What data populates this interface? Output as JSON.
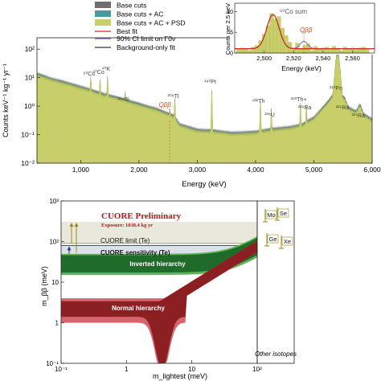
{
  "chart_data": [
    {
      "type": "area",
      "ylabel": "Counts keV⁻¹ kg⁻¹ yr⁻¹",
      "xlabel": "Energy (keV)",
      "xlim": [
        250,
        6000
      ],
      "ylim_log": [
        -2,
        2.4
      ],
      "x_ticks": [
        "1,000",
        "2,000",
        "3,000",
        "4,000",
        "5,000",
        "6,000"
      ],
      "x_tick_values": [
        1000,
        2000,
        3000,
        4000,
        5000,
        6000
      ],
      "y_ticks": [
        "10⁻²",
        "10⁻¹",
        "10⁰",
        "10¹",
        "10²"
      ],
      "y_tick_exps": [
        -2,
        -1,
        0,
        1,
        2
      ],
      "legend": [
        "Base cuts",
        "Base cuts + AC",
        "Base cuts + AC + PSD",
        "Best fit",
        "90% CI limit on Γ0ν",
        "Background-only fit"
      ],
      "colors": {
        "base": "#6e6e6e",
        "ac": "#4a9aa0",
        "psd": "#c8cf6a",
        "psd_line": "#b9c04e",
        "best_fit": "#cc2a1a",
        "ci": "#5a5acc",
        "bkg": "#333333"
      },
      "continuum": [
        [
          250,
          12
        ],
        [
          500,
          8
        ],
        [
          800,
          5.5
        ],
        [
          1100,
          3.6
        ],
        [
          1400,
          2.3
        ],
        [
          1700,
          1.6
        ],
        [
          2000,
          1.05
        ],
        [
          2300,
          0.7
        ],
        [
          2600,
          0.4
        ],
        [
          2700,
          0.2
        ],
        [
          3000,
          0.13
        ],
        [
          3300,
          0.12
        ],
        [
          3600,
          0.1
        ],
        [
          4000,
          0.11
        ],
        [
          4300,
          0.14
        ],
        [
          4600,
          0.16
        ],
        [
          4800,
          0.2
        ],
        [
          5000,
          0.35
        ],
        [
          5200,
          1.0
        ],
        [
          5300,
          1.8
        ],
        [
          5400,
          1.5
        ],
        [
          5500,
          1.0
        ],
        [
          5700,
          0.6
        ],
        [
          5900,
          0.4
        ],
        [
          6000,
          0.3
        ]
      ],
      "peaks": [
        {
          "label": "⁶⁰Co",
          "x": 1173,
          "y": 6
        },
        {
          "label": "⁶⁰Co",
          "x": 1332,
          "y": 5
        },
        {
          "label": "⁴⁰K",
          "x": 1461,
          "y": 8
        },
        {
          "label": "²¹⁴Bi",
          "x": 1764,
          "y": 1.2
        },
        {
          "label": "Qββ",
          "x": 2527,
          "y": 0.25
        },
        {
          "label": "²⁰⁸Tl",
          "x": 2615,
          "y": 1.3
        },
        {
          "label": "¹⁹⁰Pt",
          "x": 3249,
          "y": 3
        },
        {
          "label": "²³²Th",
          "x": 4083,
          "y": 1.2
        },
        {
          "label": "²³⁸U",
          "x": 4270,
          "y": 0.6
        },
        {
          "label": "²³⁰Th+",
          "x": 4770,
          "y": 1.0
        },
        {
          "label": "²²⁶Ra",
          "x": 4871,
          "y": 0.8
        },
        {
          "label": "²¹⁰Po",
          "x": 5407,
          "y": 60
        },
        {
          "label": "²²⁶Ra",
          "x": 5520,
          "y": 0.8
        },
        {
          "label": "²²⁴Ra",
          "x": 5790,
          "y": 0.45
        }
      ],
      "inset": {
        "title": "⁶⁰Co sum",
        "ylabel": "Counts per 2.5 keV",
        "xlabel": "Energy (keV)",
        "xlim": [
          2480,
          2575
        ],
        "ylim": [
          0,
          12
        ],
        "x_ticks": [
          "2,500",
          "2,520",
          "2,540",
          "2,560"
        ],
        "x_tick_values": [
          2500,
          2520,
          2540,
          2560
        ],
        "y_ticks": [
          "0",
          "5",
          "10"
        ],
        "y_tick_values": [
          0,
          5,
          10
        ],
        "q_label": "Qββ",
        "q_value": 2527,
        "hist_x": [
          2482.5,
          2485,
          2487.5,
          2490,
          2492.5,
          2495,
          2497.5,
          2500,
          2502.5,
          2505,
          2507.5,
          2510,
          2512.5,
          2515,
          2517.5,
          2520,
          2522.5,
          2525,
          2527.5,
          2530,
          2532.5,
          2535,
          2537.5,
          2540,
          2542.5,
          2545,
          2547.5,
          2550,
          2552.5,
          2555,
          2557.5,
          2560,
          2562.5,
          2565,
          2567.5,
          2570
        ],
        "hist_y": [
          0.8,
          1.2,
          1,
          0.6,
          1.4,
          1.8,
          3,
          4.5,
          6.5,
          9.5,
          8.2,
          8.8,
          6,
          4.2,
          2.6,
          1.2,
          2.4,
          1,
          1.8,
          2.2,
          0.6,
          1.6,
          0.9,
          1.2,
          1.4,
          0.8,
          1.6,
          1,
          0.6,
          1.4,
          0.9,
          1.2,
          0.8,
          1.2,
          1.4,
          1
        ]
      }
    },
    {
      "type": "area",
      "title": "CUORE Preliminary",
      "subtitle": "Exposure: 1038.4 kg yr",
      "xlabel": "m_lightest (meV)",
      "ylabel": "m_ββ (meV)",
      "xlim_log": [
        -1,
        2
      ],
      "ylim_log": [
        -1,
        3
      ],
      "x_ticks": [
        "10⁻¹",
        "1",
        "10",
        "10²"
      ],
      "x_tick_exps": [
        -1,
        0,
        1,
        2
      ],
      "y_ticks": [
        "10⁻¹",
        "1",
        "10",
        "10²",
        "10³"
      ],
      "y_tick_exps": [
        -1,
        0,
        1,
        2,
        3
      ],
      "bands": [
        {
          "label": "CUORE limit (Te)",
          "range": [
            90,
            305
          ]
        },
        {
          "label": "CUORE sensitivity (Te)",
          "range": [
            50,
            80
          ]
        },
        {
          "label": "Inverted hierarchy",
          "range": [
            15,
            50
          ]
        },
        {
          "label": "Normal hierarchy",
          "range": [
            1,
            4
          ]
        }
      ],
      "other_isotopes_label": "Other isotopes",
      "isotopes": [
        "Mo",
        "Se",
        "Ge",
        "Xe"
      ],
      "colors": {
        "limit_band": "#e9e8dc",
        "limit_line": "#a9a585",
        "sens_band": "#dde1ee",
        "ih_dark": "#1f6b2a",
        "ih_light": "#62b25a",
        "nh_dark": "#8b1f22",
        "nh_light": "#d6646e",
        "title": "#b01919",
        "arrow": "#9a8a1a"
      }
    }
  ]
}
